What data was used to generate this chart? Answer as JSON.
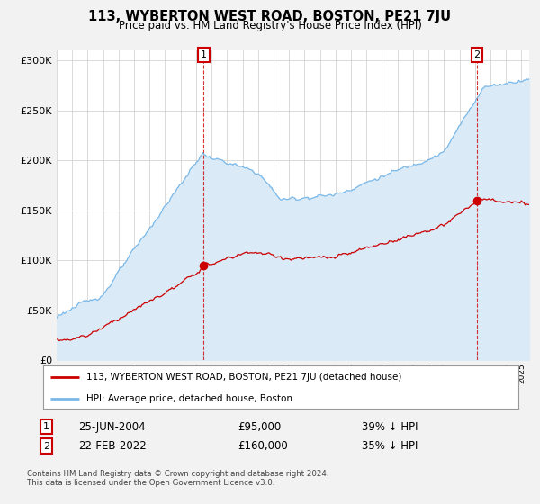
{
  "title": "113, WYBERTON WEST ROAD, BOSTON, PE21 7JU",
  "subtitle": "Price paid vs. HM Land Registry's House Price Index (HPI)",
  "legend_line1": "113, WYBERTON WEST ROAD, BOSTON, PE21 7JU (detached house)",
  "legend_line2": "HPI: Average price, detached house, Boston",
  "annotation1_date": "25-JUN-2004",
  "annotation1_price": "£95,000",
  "annotation1_hpi": "39% ↓ HPI",
  "annotation2_date": "22-FEB-2022",
  "annotation2_price": "£160,000",
  "annotation2_hpi": "35% ↓ HPI",
  "footer": "Contains HM Land Registry data © Crown copyright and database right 2024.\nThis data is licensed under the Open Government Licence v3.0.",
  "hpi_color": "#7ab8e8",
  "hpi_fill_color": "#daeaf7",
  "price_color": "#cc0000",
  "background_color": "#f2f2f2",
  "plot_bg_color": "#ffffff",
  "ylim": [
    0,
    310000
  ],
  "yticks": [
    0,
    50000,
    100000,
    150000,
    200000,
    250000,
    300000
  ],
  "sale1_x": 2004.49,
  "sale1_y": 95000,
  "sale2_x": 2022.13,
  "sale2_y": 160000,
  "xmin": 1995,
  "xmax": 2025.5
}
